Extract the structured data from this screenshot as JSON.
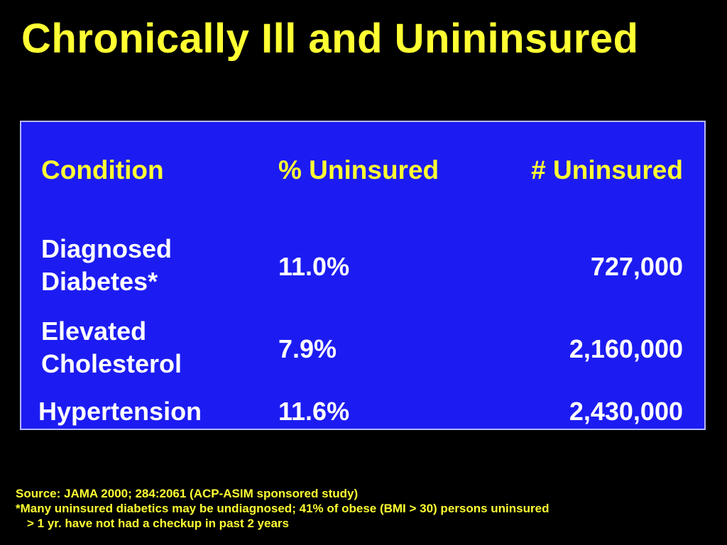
{
  "slide": {
    "title": "Chronically Ill and Unininsured"
  },
  "table": {
    "headers": {
      "condition": "Condition",
      "pct_uninsured": "% Uninsured",
      "num_uninsured": "# Uninsured"
    },
    "rows": [
      {
        "condition": "Diagnosed Diabetes*",
        "pct_uninsured": "11.0%",
        "num_uninsured": "727,000"
      },
      {
        "condition": "Elevated Cholesterol",
        "pct_uninsured": "7.9%",
        "num_uninsured": "2,160,000"
      },
      {
        "condition": "Hypertension",
        "pct_uninsured": "11.6%",
        "num_uninsured": "2,430,000"
      }
    ]
  },
  "footnotes": {
    "source": "Source: JAMA 2000; 284:2061 (ACP-ASIM sponsored study)",
    "note_line1": "*Many uninsured diabetics may be undiagnosed; 41% of obese (BMI > 30) persons uninsured",
    "note_line2": "> 1 yr. have not had a checkup in past 2 years"
  },
  "colors": {
    "background": "#000000",
    "title_text": "#FFFF33",
    "table_background": "#1C1CF2",
    "table_border": "#B8B8FF",
    "cell_text": "#FFFFFF"
  }
}
